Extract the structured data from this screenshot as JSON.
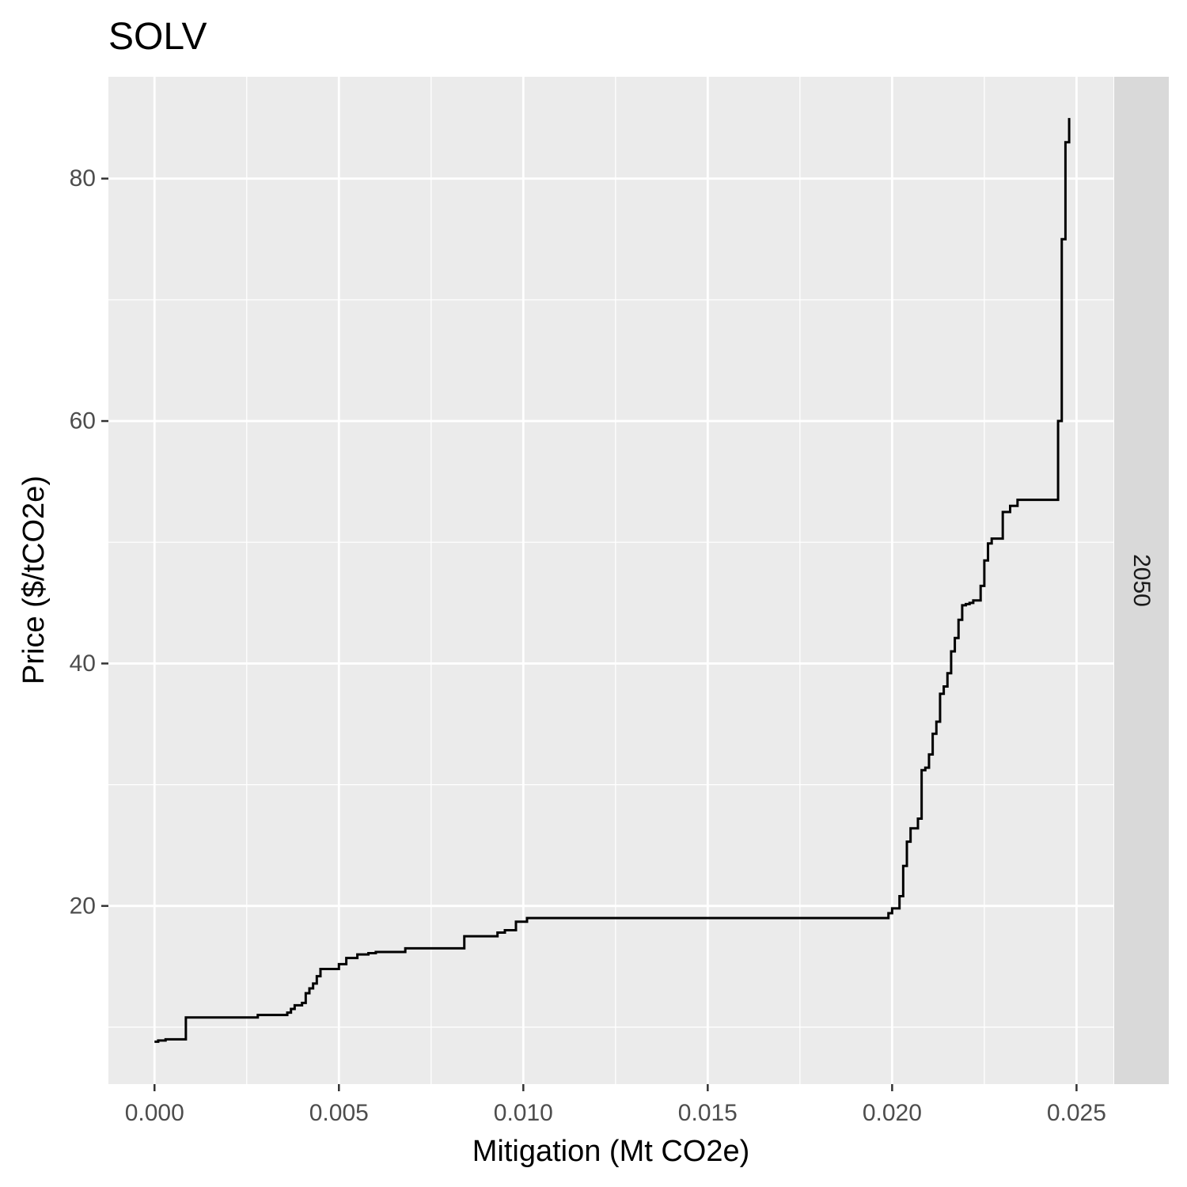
{
  "chart_data": {
    "type": "line",
    "line_style": "step",
    "title": "SOLV",
    "xlabel": "Mitigation (Mt CO2e)",
    "ylabel": "Price ($/tCO2e)",
    "facet_label": "2050",
    "xlim": [
      -0.00125,
      0.026
    ],
    "ylim": [
      5.3,
      88.4
    ],
    "x_ticks": [
      0.0,
      0.005,
      0.01,
      0.015,
      0.02,
      0.025
    ],
    "x_tick_labels": [
      "0.000",
      "0.005",
      "0.010",
      "0.015",
      "0.020",
      "0.025"
    ],
    "y_ticks": [
      20,
      40,
      60,
      80
    ],
    "y_tick_labels": [
      "20",
      "40",
      "60",
      "80"
    ],
    "grid": true,
    "colors": {
      "panel": "#ebebeb",
      "grid": "#ffffff",
      "line": "#000000",
      "strip": "#d9d9d9"
    },
    "series": [
      {
        "x": [
          0.0,
          0.0001,
          0.0003,
          0.0006,
          0.00085,
          0.00085,
          0.0027,
          0.0028,
          0.0035,
          0.0036,
          0.0037,
          0.0038,
          0.004,
          0.0041,
          0.0042,
          0.0043,
          0.0044,
          0.0045,
          0.005,
          0.0052,
          0.0055,
          0.0058,
          0.006,
          0.0068,
          0.0073,
          0.0084,
          0.0093,
          0.0095,
          0.0098,
          0.0101,
          0.0102,
          0.019,
          0.0198,
          0.0199,
          0.02,
          0.0202,
          0.0203,
          0.0204,
          0.0205,
          0.0207,
          0.0208,
          0.0208,
          0.0209,
          0.021,
          0.021,
          0.0211,
          0.0212,
          0.0213,
          0.0214,
          0.0215,
          0.0216,
          0.0217,
          0.0218,
          0.0219,
          0.022,
          0.0221,
          0.0222,
          0.0224,
          0.0225,
          0.0226,
          0.0227,
          0.023,
          0.0232,
          0.0234,
          0.024,
          0.0245,
          0.0245,
          0.0246,
          0.0246,
          0.0246,
          0.0247,
          0.0247,
          0.0247,
          0.0248
        ],
        "y": [
          8.8,
          8.9,
          9.0,
          9.0,
          9.1,
          10.8,
          10.8,
          11.0,
          11.0,
          11.2,
          11.5,
          11.8,
          12.0,
          12.8,
          13.2,
          13.6,
          14.2,
          14.8,
          15.2,
          15.7,
          16.0,
          16.1,
          16.2,
          16.5,
          16.5,
          17.5,
          17.8,
          18.0,
          18.7,
          19.0,
          19.0,
          19.0,
          19.0,
          19.4,
          19.8,
          20.8,
          23.3,
          25.3,
          26.4,
          27.2,
          27.5,
          31.2,
          31.4,
          31.8,
          32.5,
          34.2,
          35.2,
          37.5,
          38.1,
          39.2,
          41.0,
          42.1,
          43.6,
          44.8,
          44.9,
          45.0,
          45.2,
          46.4,
          48.5,
          49.9,
          50.3,
          52.5,
          53.0,
          53.5,
          53.5,
          56.0,
          60.0,
          66.0,
          71.0,
          75.0,
          79.0,
          80.5,
          83.0,
          85.0
        ]
      }
    ]
  }
}
